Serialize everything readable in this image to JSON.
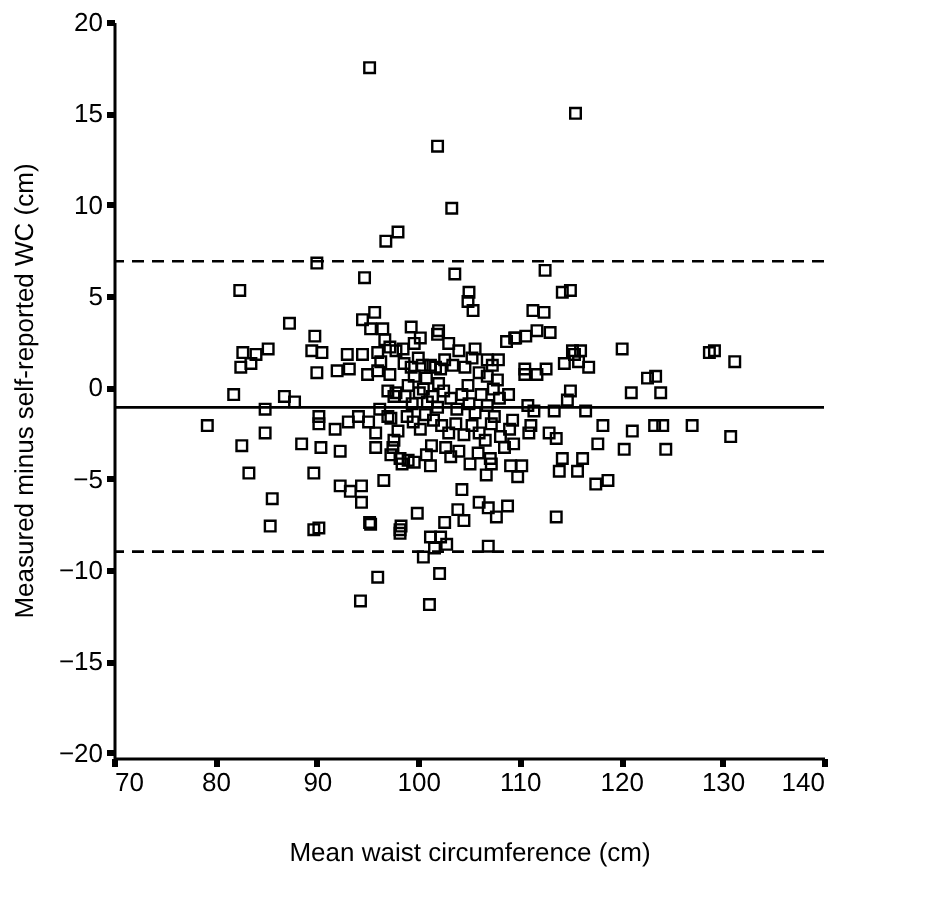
{
  "chart_data": {
    "type": "scatter",
    "xlabel": "Mean waist circumference (cm)",
    "ylabel": "Measured minus self-reported WC (cm)",
    "xlim": [
      70,
      140
    ],
    "ylim": [
      -20.3,
      20
    ],
    "xticks": [
      70,
      80,
      90,
      100,
      110,
      120,
      130,
      140
    ],
    "yticks": [
      -20,
      -15,
      -10,
      -5,
      0,
      5,
      10,
      15,
      20
    ],
    "grid": false,
    "marker": "square",
    "ref_lines": [
      {
        "axis": "y",
        "value": -1.1,
        "line_style": "solid"
      },
      {
        "axis": "y",
        "value": 6.9,
        "line_style": "dashed"
      },
      {
        "axis": "y",
        "value": -9.0,
        "line_style": "dashed"
      }
    ],
    "series": [
      {
        "color": "#000000",
        "x": [
          95.2,
          101.9,
          115.5,
          103.3,
          96.8,
          98,
          90,
          94.7,
          103.6,
          112.5,
          82.4,
          105,
          104.9,
          105.4,
          115,
          114.2,
          112.4,
          113,
          87.3,
          94.5,
          95.7,
          89.8,
          95.3,
          96.5,
          99.3,
          101.9,
          102,
          103,
          98.5,
          99.6,
          100.2,
          105.6,
          109.5,
          110.6,
          116,
          115.4,
          131.2,
          128.7,
          106.8,
          111.7,
          114.4,
          122.6,
          116.8,
          82.7,
          82.5,
          83.5,
          84,
          85.2,
          89.5,
          90.5,
          90,
          92,
          93.2,
          93,
          94.5,
          96.3,
          97.2,
          79.2,
          81.8,
          82.6,
          83.3,
          84.9,
          84.9,
          85.6,
          85.4,
          86.8,
          87.8,
          88.5,
          89.7,
          89.7,
          90.2,
          90.2,
          90.2,
          90.4,
          91.8,
          92.3,
          92.3,
          93.3,
          94.4,
          94.4,
          93.1,
          94.1,
          95.1,
          95.3,
          96.6,
          96,
          94.3,
          95.8,
          95.8,
          97.3,
          97,
          97.6,
          98.2,
          98.2,
          99.9,
          100.5,
          101.2,
          101.6,
          102.1,
          101.1,
          99,
          101.2,
          100.8,
          106.9,
          113.6,
          103.9,
          104.5,
          106,
          106.9,
          107.7,
          108.8,
          104.3,
          106.7,
          109.8,
          113.9,
          115.7,
          117.5,
          118.7,
          116.2,
          114.2,
          117.7,
          120.3,
          124.4,
          130.8,
          118.2,
          121.1,
          123.3,
          124.1,
          127,
          116.5,
          113.6,
          112.9,
          115,
          114.7,
          113.4,
          121,
          123.9,
          123.4,
          120.1,
          129.2,
          115.2,
          115.8,
          112.6,
          111.3,
          111.7,
          109.6,
          108.7,
          110.5,
          110.5,
          107.9,
          108.9,
          110.8,
          111.4,
          111.1,
          110.9,
          109.3,
          110.2,
          109.1,
          107.2,
          109.4,
          105.1,
          103.2,
          102.7,
          95.2,
          98.3,
          102.6,
          102.2,
          102.8,
          96,
          96.7,
          97.2,
          97.8,
          98.6,
          99.3,
          99.6,
          100,
          100.4,
          100.8,
          101.2,
          101.7,
          102.2,
          102.6,
          103.4,
          104,
          104.6,
          105.3,
          106,
          106.8,
          107.3,
          107.8,
          96,
          95,
          97.8,
          98.7,
          99.4,
          100.1,
          100.5,
          100.9,
          101.4,
          101.9,
          102.5,
          103.2,
          103.8,
          104.3,
          105,
          105.6,
          106.2,
          106.8,
          107.5,
          108,
          98.9,
          99.5,
          100.2,
          100.7,
          101.5,
          102.3,
          103,
          103.7,
          104.5,
          105.3,
          106,
          106.6,
          107.2,
          108.1,
          98,
          97.6,
          97.5,
          98.2,
          98.4,
          99.6,
          101.3,
          104,
          105.9,
          107.1,
          97.3,
          96.2,
          97,
          99,
          102,
          104.9,
          107.4,
          109,
          108.5
        ],
        "values": [
          17.5,
          13.2,
          15,
          9.8,
          8,
          8.5,
          6.8,
          6,
          6.2,
          6.4,
          5.3,
          5.2,
          4.7,
          4.2,
          5.3,
          5.2,
          4.1,
          3,
          3.5,
          3.7,
          4.1,
          2.8,
          3.2,
          3.2,
          3.3,
          2.9,
          3.1,
          2.4,
          2.1,
          2.4,
          2.7,
          2.1,
          2.7,
          2.8,
          2,
          1.8,
          1.4,
          1.9,
          1.5,
          0.7,
          1.3,
          0.5,
          1.1,
          1.9,
          1.1,
          1.3,
          1.8,
          2.1,
          2,
          1.9,
          0.8,
          0.9,
          1,
          1.8,
          1.8,
          1.4,
          0.7,
          -2.1,
          -0.4,
          -3.2,
          -4.7,
          -1.2,
          -2.5,
          -6.1,
          -7.6,
          -0.5,
          -0.8,
          -3.1,
          -4.7,
          -7.8,
          -7.7,
          -1.6,
          -2,
          -3.3,
          -2.3,
          -3.5,
          -5.4,
          -5.7,
          -5.4,
          -6.3,
          -1.9,
          -1.6,
          -1.9,
          -7.5,
          -5.1,
          -10.4,
          -11.7,
          -2.5,
          -3.3,
          -1.7,
          -0.2,
          -0.5,
          -7.8,
          -8,
          -6.9,
          -9.3,
          -8.2,
          -8.8,
          -10.2,
          -11.9,
          -4,
          -4.3,
          -3.7,
          -8.7,
          -7.1,
          -6.7,
          -7.3,
          -6.3,
          -6.6,
          -7.1,
          -6.5,
          -5.6,
          -4.8,
          -4.9,
          -4.6,
          -4.6,
          -5.3,
          -5.1,
          -3.9,
          -3.9,
          -3.1,
          -3.4,
          -3.4,
          -2.7,
          -2.1,
          -2.4,
          -2.1,
          -2.1,
          -2.1,
          -1.3,
          -2.8,
          -2.5,
          -0.2,
          -0.7,
          -1.3,
          -0.3,
          -0.3,
          0.6,
          2.1,
          2,
          2,
          1.4,
          1,
          4.2,
          3.1,
          2.7,
          2.5,
          1,
          0.7,
          1.5,
          -0.4,
          -1,
          -1.3,
          -2.1,
          -2.5,
          -1.8,
          -4.3,
          -4.3,
          -4.2,
          -3.1,
          -4.2,
          -3.8,
          -3.3,
          -7.4,
          -7.6,
          -7.4,
          -8.2,
          -8.6,
          1.9,
          2.6,
          2.2,
          2,
          1.3,
          1.1,
          0.6,
          1.6,
          1.2,
          0.5,
          1.2,
          1.1,
          1,
          1.5,
          1.2,
          2,
          1.1,
          1.6,
          0.8,
          0.6,
          1.2,
          0.4,
          0.9,
          0.7,
          -0.3,
          -0.5,
          -0.9,
          -0.3,
          -0.1,
          -0.8,
          -0.5,
          -1.1,
          -0.2,
          -0.6,
          -1.2,
          -0.4,
          -0.9,
          -1.4,
          -0.4,
          -1,
          -1.6,
          -0.6,
          -1.6,
          -1.9,
          -2.3,
          -1.5,
          -1.8,
          -2.1,
          -2.5,
          -2,
          -2.6,
          -2.1,
          -2.5,
          -2.9,
          -2,
          -2.7,
          -2.4,
          -2.9,
          -3.3,
          -3.9,
          -4.2,
          -4.1,
          -3.2,
          -3.5,
          -3.6,
          -3.9,
          -3.7,
          -1.2,
          -1.6,
          0.1,
          0.2,
          0.1,
          -0.1,
          -2.3,
          -3.3
        ]
      }
    ]
  }
}
